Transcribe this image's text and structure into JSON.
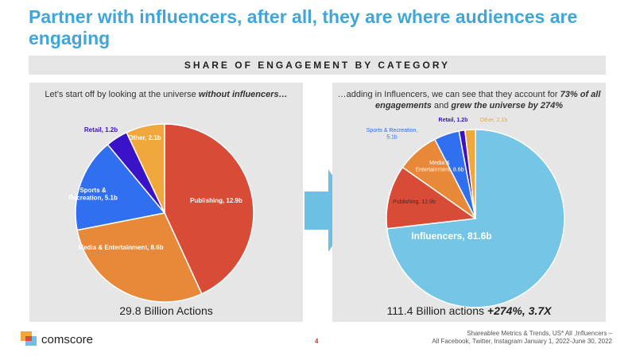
{
  "title": "Partner with influencers, after all, they are where audiences are engaging",
  "section_header": "SHARE OF ENGAGEMENT BY CATEGORY",
  "left": {
    "caption_plain": "Let’s start off by looking at the universe ",
    "caption_em": "without influencers…",
    "total": "29.8 Billion Actions"
  },
  "right": {
    "caption_1": "…adding in Influencers, we can see that they account for ",
    "caption_2": "73% of all engagements",
    "caption_3": " and ",
    "caption_4": "grew the universe by 274%",
    "total_plain": "111.4 Billion actions ",
    "total_em": "+274%, 3.7X"
  },
  "footer": {
    "brand": "comscore",
    "page": "4",
    "source_1": "Shareablee Metrics & Trends, US* All ,Influencers –",
    "source_2": "All Facebook, Twitter, Instagram January 1, 2022-June 30, 2022"
  },
  "colors": {
    "title": "#3fa6dc",
    "influencers": "#74c5e6",
    "publishing": "#d84b36",
    "media": "#e8893a",
    "sports": "#2f6ff0",
    "retail": "#3a12c8",
    "other": "#f0a73c"
  },
  "chart_data": [
    {
      "type": "pie",
      "units": "billion actions",
      "slices": [
        {
          "label": "Publishing, 12.9b",
          "name": "Publishing",
          "value": 12.9,
          "color": "#d84b36"
        },
        {
          "label": "Media & Entertainment, 8.6b",
          "name": "Media & Entertainment",
          "value": 8.6,
          "color": "#e8893a"
        },
        {
          "label": "Sports & Recreation, 5.1b",
          "name": "Sports & Recreation",
          "value": 5.1,
          "color": "#2f6ff0"
        },
        {
          "label": "Retail, 1.2b",
          "name": "Retail",
          "value": 1.2,
          "color": "#3a12c8"
        },
        {
          "label": "Other, 2.1b",
          "name": "Other",
          "value": 2.1,
          "color": "#f0a73c"
        }
      ]
    },
    {
      "type": "pie",
      "units": "billion actions",
      "slices": [
        {
          "label": "Influencers, 81.6b",
          "name": "Influencers",
          "value": 81.6,
          "color": "#74c5e6"
        },
        {
          "label": "Publishing, 12.9b",
          "name": "Publishing",
          "value": 12.9,
          "color": "#d84b36"
        },
        {
          "label": "Media & Entertainment, 8.6b",
          "name": "Media & Entertainment",
          "value": 8.6,
          "color": "#e8893a"
        },
        {
          "label": "Sports & Recreation, 5.1b",
          "name": "Sports & Recreation",
          "value": 5.1,
          "color": "#2f6ff0"
        },
        {
          "label": "Retail, 1.2b",
          "name": "Retail",
          "value": 1.2,
          "color": "#3a12c8"
        },
        {
          "label": "Other, 2.1b",
          "name": "Other",
          "value": 2.1,
          "color": "#f0a73c"
        }
      ]
    }
  ]
}
